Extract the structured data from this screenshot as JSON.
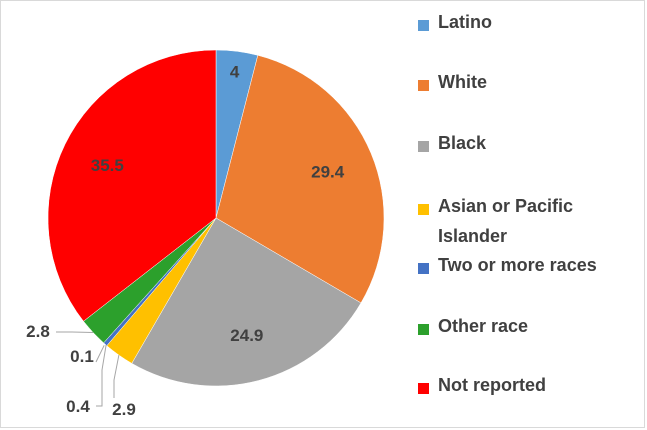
{
  "chart_data": {
    "type": "pie",
    "categories": [
      "Latino",
      "White",
      "Black",
      "Asian or Pacific Islander",
      "Two or more races",
      "Other race",
      "Not reported"
    ],
    "values": [
      4,
      29.4,
      24.9,
      2.9,
      0.4,
      2.8,
      35.5
    ],
    "data_labels": [
      "4",
      "29.4",
      "24.9",
      "2.9",
      "0.4",
      "2.8",
      "35.5"
    ],
    "extra_labels": [
      "0.1"
    ],
    "colors": [
      "#5b9bd5",
      "#ed7d31",
      "#a5a5a5",
      "#ffc000",
      "#4472c4",
      "#2ca02c",
      "#ff0000"
    ],
    "start_angle_deg": 0,
    "direction": "clockwise",
    "legend_position": "right",
    "title": ""
  }
}
